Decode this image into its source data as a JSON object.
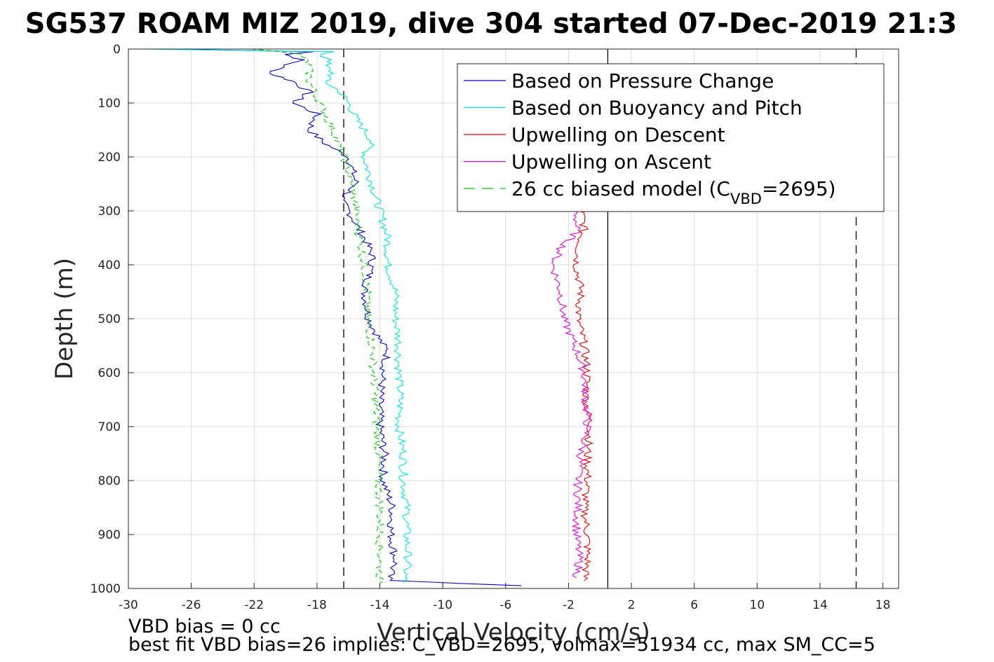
{
  "chart_data": {
    "type": "line",
    "title": "SG537 ROAM MIZ 2019, dive 304 started 07-Dec-2019 21:3",
    "xlabel": "Vertical Velocity (cm/s)",
    "ylabel": "Depth (m)",
    "xlim": [
      -30,
      19
    ],
    "ylim": [
      1000,
      0
    ],
    "y_reversed": true,
    "grid": true,
    "xticks": [
      "-30",
      "-26",
      "-22",
      "-18",
      "-14",
      "-10",
      "-6",
      "-2",
      "2",
      "6",
      "10",
      "14",
      "18"
    ],
    "yticks": [
      "0",
      "100",
      "200",
      "300",
      "400",
      "500",
      "600",
      "700",
      "800",
      "900",
      "1000"
    ],
    "legend_position": "top-right",
    "legend": [
      {
        "label": "Based on Pressure Change",
        "color": "#0000cc",
        "style": "solid"
      },
      {
        "label": "Based on Buoyancy and Pitch",
        "color": "#00e5e5",
        "style": "solid"
      },
      {
        "label": "Upwelling on Descent",
        "color": "#e50000",
        "style": "solid"
      },
      {
        "label": "Upwelling on Ascent",
        "color": "#e500e5",
        "style": "solid"
      },
      {
        "label_main": "26 cc biased model (C",
        "label_sub": "VBD",
        "label_tail": "=2695)",
        "color": "#00cc00",
        "style": "dashed"
      }
    ],
    "reference_lines": [
      {
        "x": -16.3,
        "style": "dashed",
        "color": "#000000"
      },
      {
        "x": 0.5,
        "style": "solid",
        "color": "#000000"
      },
      {
        "x": 16.3,
        "style": "dashed",
        "color": "#000000"
      }
    ],
    "series": [
      {
        "name": "Based on Pressure Change",
        "color": "#0000cc",
        "depth": [
          0,
          5,
          10,
          20,
          30,
          45,
          60,
          80,
          100,
          120,
          150,
          175,
          200,
          250,
          280,
          300,
          350,
          380,
          400,
          450,
          500,
          540,
          560,
          600,
          650,
          700,
          750,
          800,
          850,
          900,
          950,
          985,
          995
        ],
        "x": [
          -28,
          -18,
          -20,
          -19,
          -20,
          -21,
          -19.5,
          -18.5,
          -19.5,
          -18,
          -18.5,
          -17.5,
          -16,
          -15.5,
          -16.5,
          -16,
          -15,
          -14.5,
          -14.5,
          -15,
          -14.7,
          -14,
          -13.5,
          -13.8,
          -14,
          -14,
          -13.7,
          -13.8,
          -13.2,
          -13.3,
          -13,
          -13.5,
          -5
        ]
      },
      {
        "name": "Based on Buoyancy and Pitch",
        "color": "#00e5e5",
        "depth": [
          0,
          5,
          10,
          20,
          30,
          45,
          60,
          80,
          100,
          130,
          170,
          200,
          250,
          300,
          350,
          400,
          450,
          500,
          540,
          600,
          650,
          700,
          750,
          800,
          850,
          900,
          950,
          990
        ],
        "x": [
          -29,
          -17,
          -18,
          -17,
          -17.5,
          -17,
          -17.5,
          -16.5,
          -16,
          -15.5,
          -14.5,
          -15,
          -14.5,
          -14,
          -13.5,
          -13.5,
          -13,
          -13,
          -12.8,
          -12.8,
          -12.7,
          -12.8,
          -12.5,
          -12.5,
          -12.3,
          -12.3,
          -12.2,
          -12.5
        ]
      },
      {
        "name": "Upwelling on Descent",
        "color": "#e50000",
        "depth": [
          300,
          330,
          360,
          400,
          450,
          500,
          550,
          600,
          650,
          700,
          750,
          800,
          850,
          900,
          950,
          985
        ],
        "x": [
          -1.2,
          -1.0,
          -1.3,
          -1.5,
          -1.2,
          -1.4,
          -1.0,
          -0.8,
          -0.9,
          -0.6,
          -0.8,
          -0.8,
          -1.0,
          -0.8,
          -0.8,
          -1.0
        ]
      },
      {
        "name": "Upwelling on Ascent",
        "color": "#e500e5",
        "depth": [
          300,
          340,
          370,
          400,
          450,
          500,
          550,
          600,
          650,
          700,
          750,
          800,
          850,
          900,
          950,
          980
        ],
        "x": [
          -1.5,
          -1.5,
          -2.5,
          -3.0,
          -2.5,
          -2.3,
          -1.6,
          -1.0,
          -0.9,
          -0.8,
          -1.2,
          -1.4,
          -1.4,
          -1.5,
          -1.3,
          -1.5
        ]
      },
      {
        "name": "26 cc biased model",
        "color": "#00cc00",
        "depth": [
          0,
          10,
          30,
          60,
          100,
          150,
          200,
          250,
          300,
          350,
          400,
          450,
          500,
          550,
          600,
          650,
          700,
          750,
          800,
          850,
          900,
          950,
          990
        ],
        "x": [
          -22,
          -19,
          -18.5,
          -18.5,
          -17.8,
          -17,
          -16.3,
          -15.8,
          -15.5,
          -15.3,
          -15,
          -14.8,
          -14.8,
          -14.5,
          -14.4,
          -14.3,
          -14.2,
          -14.1,
          -14.1,
          -14,
          -14,
          -14,
          -14
        ]
      }
    ]
  },
  "footer": {
    "line1": "VBD bias = 0 cc",
    "line2": "best fit VBD bias=26 implies: C_VBD=2695, volmax=51934 cc, max SM_CC=5"
  }
}
